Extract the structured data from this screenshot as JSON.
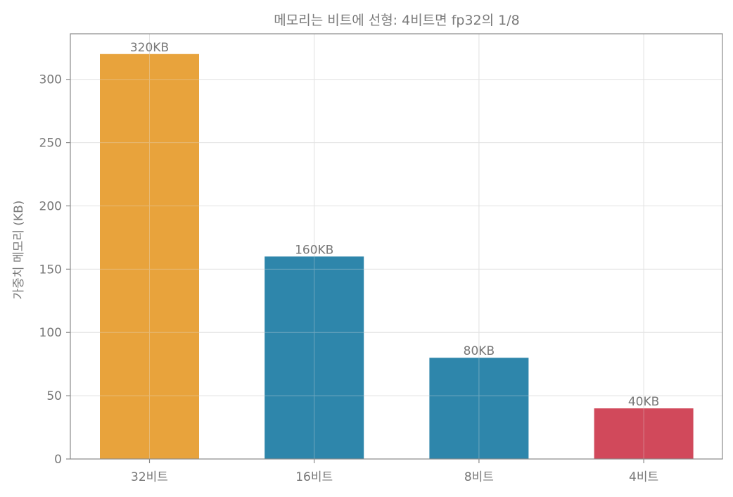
{
  "chart_data": {
    "type": "bar",
    "title": "메모리는 비트에 선형: 4비트면 fp32의 1/8",
    "xlabel": "",
    "ylabel": "가중치 메모리 (KB)",
    "categories": [
      "32비트",
      "16비트",
      "8비트",
      "4비트"
    ],
    "values": [
      320,
      160,
      80,
      40
    ],
    "data_labels": [
      "320KB",
      "160KB",
      "80KB",
      "40KB"
    ],
    "colors": [
      "#E8A33C",
      "#2E86AB",
      "#2E86AB",
      "#D1495B"
    ],
    "ylim": [
      0,
      336
    ],
    "yticks": [
      0,
      50,
      100,
      150,
      200,
      250,
      300
    ],
    "grid": true
  }
}
